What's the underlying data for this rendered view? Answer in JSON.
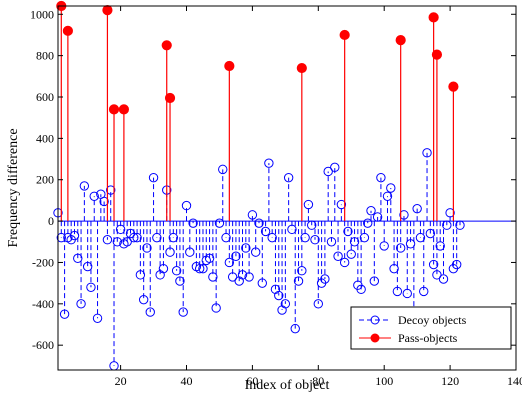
{
  "chart_data": {
    "type": "stem",
    "xlabel": "Index of object",
    "ylabel": "Frequency difference",
    "xlim": [
      1,
      140
    ],
    "ylim": [
      -720,
      1040
    ],
    "xticks": [
      20,
      40,
      60,
      80,
      100,
      120,
      140
    ],
    "yticks": [
      -600,
      -400,
      -200,
      0,
      200,
      400,
      600,
      800,
      1000
    ],
    "legend_position": "bottom-right",
    "colors": {
      "decoy": "#0000ff",
      "pass": "#ff0000",
      "axis": "#000000"
    },
    "series": [
      {
        "name": "Decoy objects",
        "style": "dashed stem, open circle marker",
        "points": [
          [
            1,
            40
          ],
          [
            2,
            -80
          ],
          [
            3,
            -450
          ],
          [
            4,
            -80
          ],
          [
            5,
            -90
          ],
          [
            6,
            -70
          ],
          [
            7,
            -180
          ],
          [
            8,
            -400
          ],
          [
            9,
            170
          ],
          [
            10,
            -220
          ],
          [
            11,
            -320
          ],
          [
            12,
            120
          ],
          [
            13,
            -470
          ],
          [
            14,
            130
          ],
          [
            15,
            95
          ],
          [
            16,
            -90
          ],
          [
            17,
            150
          ],
          [
            18,
            -700
          ],
          [
            19,
            -100
          ],
          [
            20,
            -40
          ],
          [
            21,
            -110
          ],
          [
            22,
            -100
          ],
          [
            23,
            -60
          ],
          [
            24,
            -80
          ],
          [
            25,
            -80
          ],
          [
            26,
            -260
          ],
          [
            27,
            -380
          ],
          [
            28,
            -130
          ],
          [
            29,
            -440
          ],
          [
            30,
            210
          ],
          [
            31,
            -80
          ],
          [
            32,
            -260
          ],
          [
            33,
            -230
          ],
          [
            34,
            150
          ],
          [
            35,
            -150
          ],
          [
            36,
            -80
          ],
          [
            37,
            -240
          ],
          [
            38,
            -290
          ],
          [
            39,
            -440
          ],
          [
            40,
            75
          ],
          [
            41,
            -150
          ],
          [
            42,
            -10
          ],
          [
            43,
            -220
          ],
          [
            44,
            -230
          ],
          [
            45,
            -230
          ],
          [
            46,
            -190
          ],
          [
            47,
            -180
          ],
          [
            48,
            -270
          ],
          [
            49,
            -420
          ],
          [
            50,
            -10
          ],
          [
            51,
            250
          ],
          [
            52,
            -80
          ],
          [
            53,
            -200
          ],
          [
            54,
            -270
          ],
          [
            55,
            -170
          ],
          [
            56,
            -290
          ],
          [
            57,
            -260
          ],
          [
            58,
            -130
          ],
          [
            59,
            -270
          ],
          [
            60,
            30
          ],
          [
            61,
            -150
          ],
          [
            62,
            -10
          ],
          [
            63,
            -300
          ],
          [
            64,
            -50
          ],
          [
            65,
            280
          ],
          [
            66,
            -80
          ],
          [
            67,
            -330
          ],
          [
            68,
            -360
          ],
          [
            69,
            -430
          ],
          [
            70,
            -400
          ],
          [
            71,
            210
          ],
          [
            72,
            -40
          ],
          [
            73,
            -520
          ],
          [
            74,
            -290
          ],
          [
            75,
            -240
          ],
          [
            76,
            -80
          ],
          [
            77,
            80
          ],
          [
            78,
            -20
          ],
          [
            79,
            -90
          ],
          [
            80,
            -400
          ],
          [
            81,
            -300
          ],
          [
            82,
            -280
          ],
          [
            83,
            240
          ],
          [
            84,
            -100
          ],
          [
            85,
            260
          ],
          [
            86,
            -170
          ],
          [
            87,
            80
          ],
          [
            88,
            -200
          ],
          [
            89,
            -50
          ],
          [
            90,
            -160
          ],
          [
            91,
            -100
          ],
          [
            92,
            -310
          ],
          [
            93,
            -330
          ],
          [
            94,
            -80
          ],
          [
            95,
            -10
          ],
          [
            96,
            50
          ],
          [
            97,
            -290
          ],
          [
            98,
            20
          ],
          [
            99,
            210
          ],
          [
            100,
            -120
          ],
          [
            101,
            120
          ],
          [
            102,
            160
          ],
          [
            103,
            -230
          ],
          [
            104,
            -340
          ],
          [
            105,
            -130
          ],
          [
            106,
            30
          ],
          [
            107,
            -350
          ],
          [
            108,
            -110
          ],
          [
            109,
            -480
          ],
          [
            110,
            60
          ],
          [
            111,
            -80
          ],
          [
            112,
            -340
          ],
          [
            113,
            330
          ],
          [
            114,
            -60
          ],
          [
            115,
            -210
          ],
          [
            116,
            -260
          ],
          [
            117,
            -120
          ],
          [
            118,
            -280
          ],
          [
            119,
            -20
          ],
          [
            120,
            40
          ],
          [
            121,
            -230
          ],
          [
            122,
            -210
          ],
          [
            123,
            -20
          ]
        ]
      },
      {
        "name": "Pass-objects",
        "style": "solid stem, filled circle marker",
        "points": [
          [
            2,
            1040
          ],
          [
            4,
            920
          ],
          [
            16,
            1020
          ],
          [
            18,
            540
          ],
          [
            21,
            540
          ],
          [
            34,
            850
          ],
          [
            35,
            595
          ],
          [
            53,
            750
          ],
          [
            75,
            740
          ],
          [
            88,
            900
          ],
          [
            105,
            875
          ],
          [
            115,
            985
          ],
          [
            116,
            805
          ],
          [
            121,
            650
          ]
        ]
      }
    ]
  }
}
